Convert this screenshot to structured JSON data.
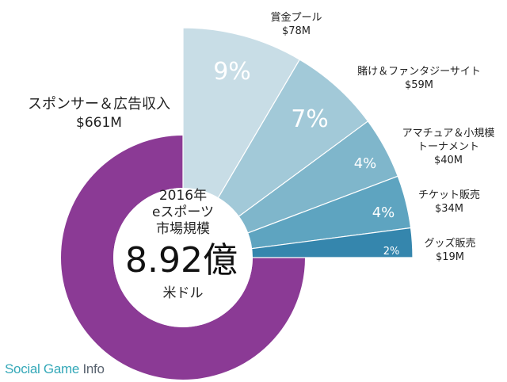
{
  "chart_data": {
    "type": "pie",
    "center": {
      "year": "2016年",
      "subtitle": "eスポーツ",
      "title": "市場規模",
      "value": "8.92億",
      "unit": "米ドル"
    },
    "main_segment": {
      "name": "スポンサー＆広告収入",
      "value_label": "$661M",
      "value": 661,
      "color": "#8b3a95"
    },
    "segments": [
      {
        "name": "賞金プール",
        "value_label": "$78M",
        "value": 78,
        "percent_label": "9%",
        "color": "#c8dde6"
      },
      {
        "name": "賭け＆ファンタジーサイト",
        "value_label": "$59M",
        "value": 59,
        "percent_label": "7%",
        "color": "#a2c9d8"
      },
      {
        "name": "アマチュア＆小規模トーナメント",
        "value_label": "$40M",
        "value": 40,
        "percent_label": "4%",
        "color": "#7fb6cb"
      },
      {
        "name": "チケット販売",
        "value_label": "$34M",
        "value": 34,
        "percent_label": "4%",
        "color": "#5ea4c0"
      },
      {
        "name": "グッズ販売",
        "value_label": "$19M",
        "value": 19,
        "percent_label": "2%",
        "color": "#3586ad"
      }
    ]
  },
  "label_lines": {
    "main": [
      "スポンサー＆広告収入",
      "$661M"
    ],
    "s0": [
      "賞金プール",
      "$78M"
    ],
    "s1": [
      "賭け＆ファンタジーサイト",
      "$59M"
    ],
    "s2": [
      "アマチュア＆小規模",
      "トーナメント",
      "$40M"
    ],
    "s3": [
      "チケット販売",
      "$34M"
    ],
    "s4": [
      "グッズ販売",
      "$19M"
    ]
  },
  "logo": {
    "part1": "Social Game ",
    "part2": "Info"
  }
}
